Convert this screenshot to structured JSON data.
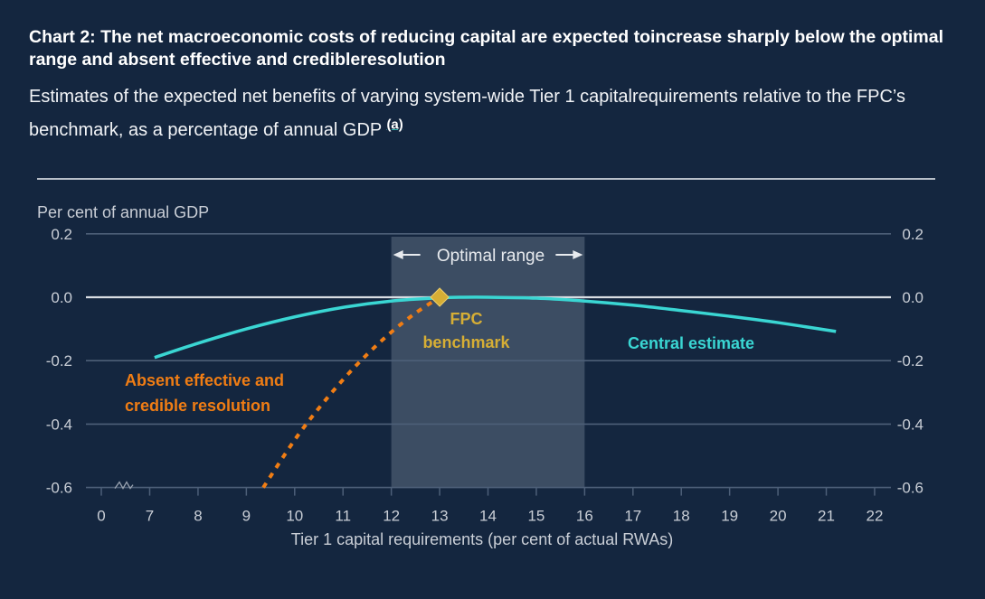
{
  "header": {
    "title": "Chart 2: The net macroeconomic costs of reducing capital are expected toincrease sharply below the optimal range and absent effective and credibleresolution",
    "subtitle": "Estimates of the expected net benefits of varying system-wide Tier 1 capitalrequirements relative to the FPC’s benchmark, as a percentage of annual GDP",
    "footnote_label": "(a)"
  },
  "colors": {
    "background": "#14263f",
    "central_estimate": "#3ad6d3",
    "absent_resolution": "#f07d14",
    "fpc_benchmark": "#d6ae35",
    "optimal_range_shade": "#3e4f65",
    "axis_text": "#c9ced6",
    "gridline": "#4d5f78",
    "zero_line": "#d9dde3"
  },
  "chart_data": {
    "type": "line",
    "title": "Chart 2: The net macroeconomic costs of reducing capital are expected toincrease sharply below the optimal range and absent effective and credibleresolution",
    "xlabel": "Tier 1 capital requirements (per cent of actual RWAs)",
    "ylabel": "Per cent of annual GDP",
    "x_tick_labels": [
      "0",
      "7",
      "8",
      "9",
      "10",
      "11",
      "12",
      "13",
      "14",
      "15",
      "16",
      "17",
      "18",
      "19",
      "20",
      "21",
      "22"
    ],
    "x_axis_break": "between 0 and 7",
    "xlim": [
      7,
      22
    ],
    "ylim": [
      -0.6,
      0.2
    ],
    "y_ticks": [
      0.2,
      0.0,
      -0.2,
      -0.4,
      -0.6
    ],
    "y_tick_labels": [
      "0.2",
      "0.0",
      "-0.2",
      "-0.4",
      "-0.6"
    ],
    "y_axis_sides": "left and right",
    "grid": true,
    "series": [
      {
        "name": "Central estimate",
        "style": "solid",
        "points": [
          [
            7.1,
            -0.19
          ],
          [
            8,
            -0.145
          ],
          [
            9,
            -0.1
          ],
          [
            10,
            -0.062
          ],
          [
            11,
            -0.032
          ],
          [
            12,
            -0.012
          ],
          [
            13,
            -0.002
          ],
          [
            13.5,
            0.0
          ],
          [
            14,
            0.0
          ],
          [
            15,
            -0.003
          ],
          [
            16,
            -0.012
          ],
          [
            17,
            -0.025
          ],
          [
            18,
            -0.042
          ],
          [
            19,
            -0.06
          ],
          [
            20,
            -0.08
          ],
          [
            21.2,
            -0.108
          ]
        ]
      },
      {
        "name": "Absent effective and credible resolution",
        "style": "dotted",
        "points": [
          [
            9.35,
            -0.6
          ],
          [
            10,
            -0.45
          ],
          [
            10.5,
            -0.35
          ],
          [
            11,
            -0.26
          ],
          [
            11.5,
            -0.18
          ],
          [
            12,
            -0.11
          ],
          [
            12.5,
            -0.05
          ],
          [
            13,
            0.0
          ]
        ]
      }
    ],
    "shaded_region": {
      "label": "Optimal range",
      "x": [
        12,
        16
      ]
    },
    "markers": [
      {
        "name": "FPC benchmark",
        "x": 13,
        "y": 0.0,
        "shape": "diamond"
      }
    ],
    "annotations": [
      {
        "text": "Optimal range",
        "refers_to": "shaded_region"
      },
      {
        "text": [
          "FPC",
          "benchmark"
        ],
        "refers_to": "FPC benchmark"
      },
      {
        "text": "Central estimate",
        "refers_to": "Central estimate"
      },
      {
        "text": [
          "Absent effective and",
          "credible resolution"
        ],
        "refers_to": "Absent effective and credible resolution"
      }
    ]
  }
}
